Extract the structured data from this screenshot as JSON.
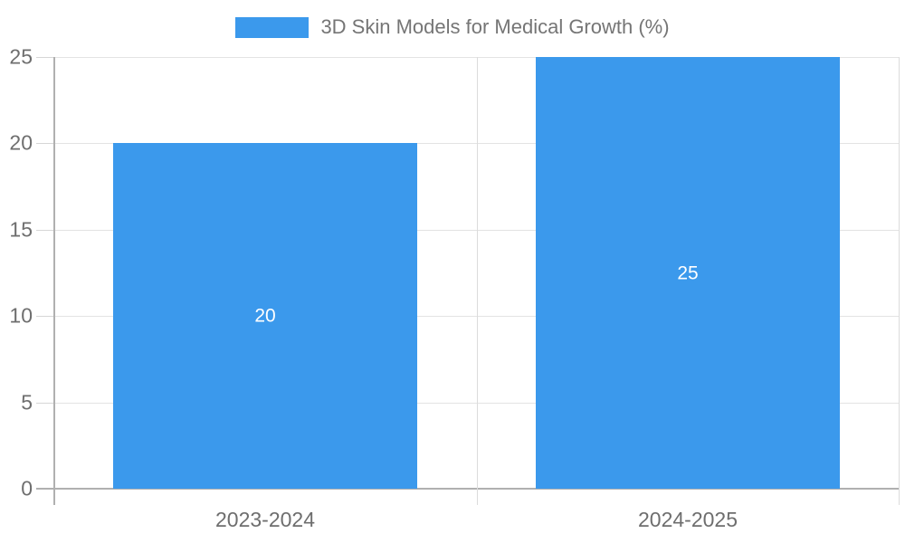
{
  "legend": {
    "label": "3D Skin Models for Medical Growth (%)"
  },
  "chart_data": {
    "type": "bar",
    "title": "3D Skin Models for Medical Growth (%)",
    "categories": [
      "2023-2024",
      "2024-2025"
    ],
    "values": [
      20,
      25
    ],
    "value_labels": [
      "20",
      "25"
    ],
    "xlabel": "",
    "ylabel": "",
    "ylim": [
      0,
      25
    ],
    "yticks": [
      0,
      5,
      10,
      15,
      20,
      25
    ],
    "ytick_labels": [
      "0",
      "5",
      "10",
      "15",
      "20",
      "25"
    ],
    "grid": true,
    "legend_position": "top-center",
    "colors": {
      "bar": "#3b99ec",
      "grid": "#e3e3e3",
      "divider": "#dcdcdc",
      "axis": "#b0b0b0",
      "tick": "#d6d6d6",
      "tick_label": "#6e6e6e",
      "legend_label": "#757575",
      "value_label": "#ffffff",
      "background": "#ffffff"
    }
  }
}
